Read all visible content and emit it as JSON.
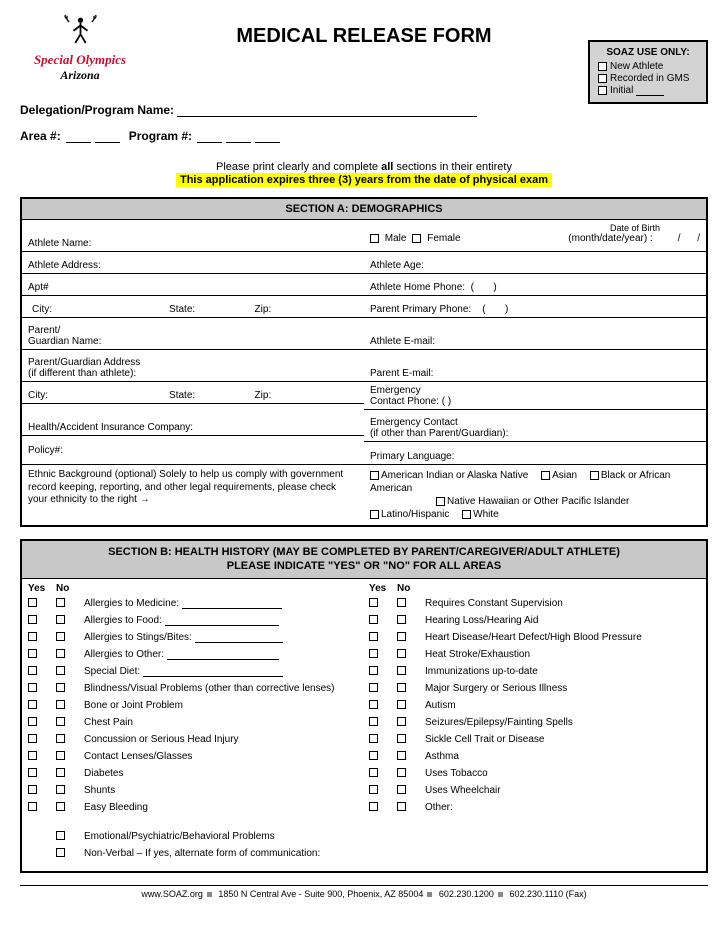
{
  "logo": {
    "brand1": "Special Olympics",
    "brand2": "Arizona"
  },
  "title": "MEDICAL RELEASE FORM",
  "soaz": {
    "heading": "SOAZ USE ONLY:",
    "opt1": "New Athlete",
    "opt2": "Recorded in GMS",
    "opt3": "Initial"
  },
  "delegation": {
    "label": "Delegation/Program Name:",
    "area": "Area #:",
    "program": "Program #:"
  },
  "pre": {
    "line1a": "Please print clearly and complete ",
    "line1b": "all",
    "line1c": " sections in their entirety",
    "line2": "This application expires three (3) years from the date of physical exam"
  },
  "sectionA": {
    "title": "SECTION A: DEMOGRAPHICS",
    "left": {
      "athleteName": "Athlete Name:",
      "athleteAddress": "Athlete Address:",
      "apt": "Apt#",
      "city": "City:",
      "state": "State:",
      "zip": "Zip:",
      "guardian": "Parent/\nGuardian Name:",
      "guardianAddr": "Parent/Guardian Address\n(if different than athlete):",
      "city2": "City:",
      "state2": "State:",
      "zip2": "Zip:",
      "insurance": "Health/Accident Insurance Company:",
      "policy": "Policy#:"
    },
    "right": {
      "dobNote": "Date of Birth",
      "male": "Male",
      "female": "Female",
      "dobLabel": "(month/date/year) :         /      /",
      "age": "Athlete Age:",
      "homePhone": "Athlete Home Phone:  (       )",
      "parentPhone": "Parent Primary Phone:    (       )",
      "athleteEmail": "Athlete E-mail:",
      "parentEmail": "Parent E-mail:",
      "emergPhone": "Emergency\nContact Phone:  (       )",
      "emergContact": "Emergency Contact\n(if other than Parent/Guardian):",
      "primaryLang": "Primary Language:"
    },
    "ethnic": {
      "text": "Ethnic Background (optional) Solely to help us comply with government record keeping, reporting, and other legal requirements, please check your ethnicity to the right →",
      "o1": "American Indian or Alaska Native",
      "o2": "Asian",
      "o3": "Black or African American",
      "o4": "Native Hawaiian or Other Pacific Islander",
      "o5": "Latino/Hispanic",
      "o6": "White"
    }
  },
  "sectionB": {
    "title": "SECTION B: HEALTH HISTORY (MAY BE COMPLETED BY PARENT/CAREGIVER/ADULT ATHLETE)\nPLEASE INDICATE \"YES\" OR \"NO\" FOR ALL AREAS",
    "yes": "Yes",
    "no": "No",
    "left": [
      {
        "l": "Allergies to Medicine:",
        "line": 100
      },
      {
        "l": "Allergies to Food:",
        "line": 114
      },
      {
        "l": "Allergies to Stings/Bites:",
        "line": 88
      },
      {
        "l": "Allergies to Other:",
        "line": 112
      },
      {
        "l": "Special Diet:",
        "line": 140
      },
      {
        "l": "Blindness/Visual Problems (other than corrective lenses)"
      },
      {
        "l": "Bone or Joint Problem"
      },
      {
        "l": "Chest Pain"
      },
      {
        "l": "Concussion or Serious Head Injury"
      },
      {
        "l": "Contact Lenses/Glasses"
      },
      {
        "l": "Diabetes"
      },
      {
        "l": "Shunts"
      },
      {
        "l": "Easy Bleeding"
      }
    ],
    "leftExtra": [
      {
        "l": "Emotional/Psychiatric/Behavioral Problems"
      },
      {
        "l": "Non-Verbal – If yes, alternate form of communication:"
      }
    ],
    "right": [
      {
        "l": "Requires Constant  Supervision"
      },
      {
        "l": "Hearing Loss/Hearing Aid"
      },
      {
        "l": "Heart Disease/Heart Defect/High Blood Pressure"
      },
      {
        "l": "Heat Stroke/Exhaustion"
      },
      {
        "l": "Immunizations up-to-date"
      },
      {
        "l": "Major Surgery or Serious Illness"
      },
      {
        "l": "Autism"
      },
      {
        "l": " Seizures/Epilepsy/Fainting Spells"
      },
      {
        "l": "Sickle Cell Trait or Disease"
      },
      {
        "l": "Asthma"
      },
      {
        "l": "Uses Tobacco"
      },
      {
        "l": "Uses Wheelchair"
      },
      {
        "l": "Other:"
      }
    ]
  },
  "footer": {
    "site": "www.SOAZ.org",
    "addr": "1850 N Central Ave - Suite 900, Phoenix, AZ 85004",
    "phone": "602.230.1200",
    "fax": "602.230.1110 (Fax)"
  }
}
